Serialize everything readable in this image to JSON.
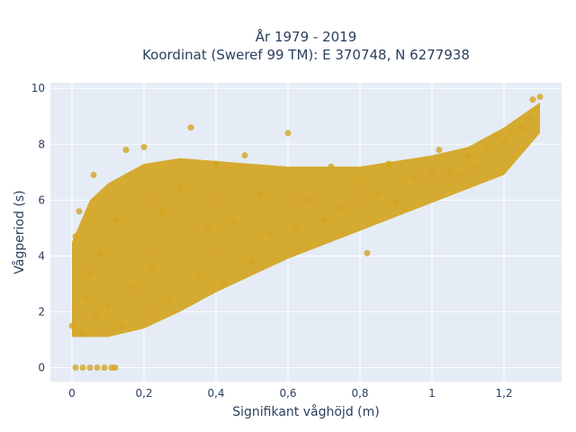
{
  "chart_data": {
    "type": "scatter",
    "title": "År 1979 - 2019",
    "subtitle": "Koordinat (Sweref 99 TM): E 370748, N 6277938",
    "xlabel": "Signifikant våghöjd (m)",
    "ylabel": "Vågperiod (s)",
    "xlim": [
      -0.06,
      1.36
    ],
    "ylim": [
      -0.5,
      10.2
    ],
    "x_ticks": [
      0,
      0.2,
      0.4,
      0.6,
      0.8,
      1,
      1.2
    ],
    "x_tick_labels": [
      "0",
      "0,2",
      "0,4",
      "0,6",
      "0,8",
      "1",
      "1,2"
    ],
    "y_ticks": [
      0,
      2,
      4,
      6,
      8,
      10
    ],
    "y_tick_labels": [
      "0",
      "2",
      "4",
      "6",
      "8",
      "10"
    ],
    "grid": true,
    "marker_color": "#D4A420",
    "plot_bgcolor": "#E5ECF6",
    "series": [
      {
        "points": [
          [
            0.01,
            0.0
          ],
          [
            0.03,
            0.0
          ],
          [
            0.05,
            0.0
          ],
          [
            0.07,
            0.0
          ],
          [
            0.09,
            0.0
          ],
          [
            0.11,
            0.0
          ],
          [
            0.12,
            0.0
          ],
          [
            0.0,
            1.5
          ],
          [
            0.01,
            4.7
          ],
          [
            0.02,
            5.6
          ],
          [
            0.03,
            1.2
          ],
          [
            0.04,
            2.5
          ],
          [
            0.05,
            3.4
          ],
          [
            0.06,
            6.9
          ],
          [
            0.07,
            1.8
          ],
          [
            0.08,
            4.1
          ],
          [
            0.1,
            2.2
          ],
          [
            0.12,
            5.3
          ],
          [
            0.14,
            1.5
          ],
          [
            0.15,
            7.8
          ],
          [
            0.17,
            2.9
          ],
          [
            0.2,
            7.9
          ],
          [
            0.22,
            3.6
          ],
          [
            0.25,
            5.6
          ],
          [
            0.27,
            2.4
          ],
          [
            0.3,
            6.4
          ],
          [
            0.33,
            8.6
          ],
          [
            0.35,
            3.3
          ],
          [
            0.38,
            5.0
          ],
          [
            0.4,
            7.3
          ],
          [
            0.42,
            3.0
          ],
          [
            0.45,
            5.2
          ],
          [
            0.48,
            7.6
          ],
          [
            0.5,
            3.8
          ],
          [
            0.52,
            6.2
          ],
          [
            0.55,
            4.8
          ],
          [
            0.6,
            8.4
          ],
          [
            0.62,
            5.0
          ],
          [
            0.65,
            6.0
          ],
          [
            0.7,
            5.3
          ],
          [
            0.72,
            7.2
          ],
          [
            0.75,
            5.7
          ],
          [
            0.8,
            6.6
          ],
          [
            0.82,
            4.1
          ],
          [
            0.85,
            6.2
          ],
          [
            0.88,
            7.3
          ],
          [
            0.9,
            5.9
          ],
          [
            0.95,
            6.8
          ],
          [
            1.0,
            6.9
          ],
          [
            1.02,
            7.8
          ],
          [
            1.05,
            7.0
          ],
          [
            1.08,
            6.9
          ],
          [
            1.1,
            7.6
          ],
          [
            1.12,
            7.2
          ],
          [
            1.15,
            7.9
          ],
          [
            1.18,
            8.3
          ],
          [
            1.2,
            8.1
          ],
          [
            1.22,
            8.4
          ],
          [
            1.25,
            8.6
          ],
          [
            1.27,
            8.9
          ],
          [
            1.28,
            9.6
          ],
          [
            1.3,
            9.7
          ]
        ]
      }
    ]
  }
}
